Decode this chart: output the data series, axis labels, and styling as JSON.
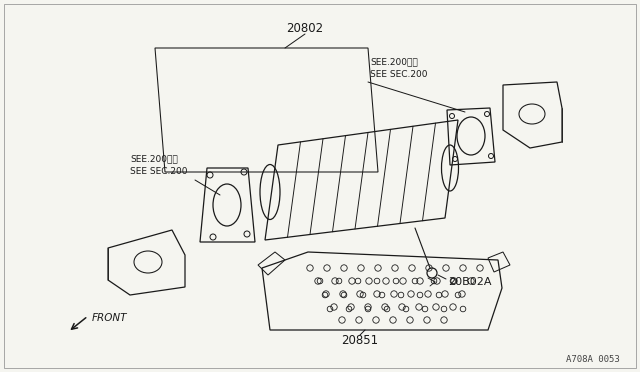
{
  "bg_color": "#f5f5f0",
  "line_color": "#1a1a1a",
  "label_20802": "20802",
  "label_20802A": "20B02A",
  "label_20851": "20851",
  "label_see200_top": "SEE.200参照\nSEE SEC.200",
  "label_see200_left": "SEE.200参照\nSEE SEC.200",
  "label_front": "FRONT",
  "label_code": "A708A 0053",
  "lw": 0.9,
  "figsize": [
    6.4,
    3.72
  ],
  "dpi": 100
}
